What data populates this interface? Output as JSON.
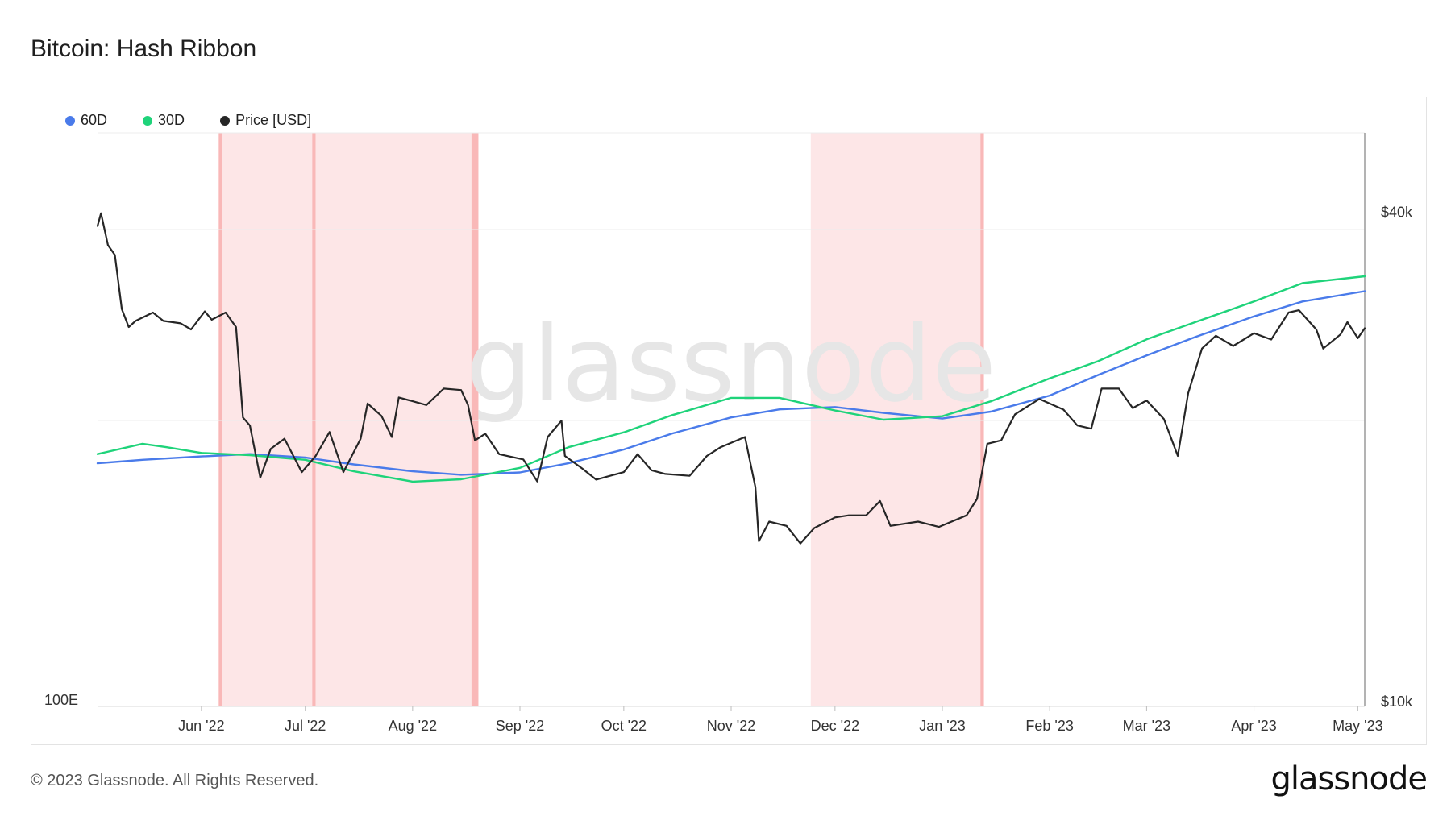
{
  "header": {
    "title": "Bitcoin: Hash Ribbon"
  },
  "footer": {
    "copyright": "© 2023 Glassnode. All Rights Reserved.",
    "brand": "glassnode"
  },
  "watermark": "glassnode",
  "chart_data": {
    "type": "line",
    "title": "Bitcoin: Hash Ribbon",
    "x_range": [
      "2022-05-02",
      "2023-05-03"
    ],
    "x_ticks": [
      {
        "date": "2022-06-01",
        "label": "Jun '22"
      },
      {
        "date": "2022-07-01",
        "label": "Jul '22"
      },
      {
        "date": "2022-08-01",
        "label": "Aug '22"
      },
      {
        "date": "2022-09-01",
        "label": "Sep '22"
      },
      {
        "date": "2022-10-01",
        "label": "Oct '22"
      },
      {
        "date": "2022-11-01",
        "label": "Nov '22"
      },
      {
        "date": "2022-12-01",
        "label": "Dec '22"
      },
      {
        "date": "2023-01-01",
        "label": "Jan '23"
      },
      {
        "date": "2023-02-01",
        "label": "Feb '23"
      },
      {
        "date": "2023-03-01",
        "label": "Mar '23"
      },
      {
        "date": "2023-04-01",
        "label": "Apr '23"
      },
      {
        "date": "2023-05-01",
        "label": "May '23"
      }
    ],
    "y_left": {
      "label_bottom": "100E"
    },
    "y_right": {
      "scale": "log",
      "range": [
        10000,
        50000
      ],
      "ticks": [
        {
          "value": 10000,
          "label": "$10k"
        },
        {
          "value": 40000,
          "label": "$40k"
        }
      ]
    },
    "legend_position": "top-left",
    "grid": true,
    "capitulation_periods": [
      [
        "2022-06-06",
        "2022-06-07"
      ],
      [
        "2022-06-07",
        "2022-07-03"
      ],
      [
        "2022-07-03",
        "2022-07-04"
      ],
      [
        "2022-07-04",
        "2022-08-18"
      ],
      [
        "2022-08-18",
        "2022-08-20"
      ],
      [
        "2022-11-24",
        "2023-01-12"
      ],
      [
        "2023-01-12",
        "2023-01-13"
      ]
    ],
    "series": [
      {
        "name": "60D",
        "color": "#4a7bea",
        "axis": "left",
        "points": [
          [
            "2022-05-02",
            31.2
          ],
          [
            "2022-05-15",
            31.5
          ],
          [
            "2022-06-01",
            31.8
          ],
          [
            "2022-06-15",
            32.0
          ],
          [
            "2022-07-01",
            31.7
          ],
          [
            "2022-07-15",
            31.1
          ],
          [
            "2022-08-01",
            30.5
          ],
          [
            "2022-08-15",
            30.2
          ],
          [
            "2022-09-01",
            30.4
          ],
          [
            "2022-09-15",
            31.2
          ],
          [
            "2022-10-01",
            32.4
          ],
          [
            "2022-10-15",
            33.8
          ],
          [
            "2022-11-01",
            35.2
          ],
          [
            "2022-11-15",
            35.9
          ],
          [
            "2022-12-01",
            36.1
          ],
          [
            "2022-12-15",
            35.6
          ],
          [
            "2023-01-01",
            35.1
          ],
          [
            "2023-01-15",
            35.7
          ],
          [
            "2023-02-01",
            37.1
          ],
          [
            "2023-02-15",
            38.9
          ],
          [
            "2023-03-01",
            40.6
          ],
          [
            "2023-03-15",
            42.2
          ],
          [
            "2023-04-01",
            44.0
          ],
          [
            "2023-04-15",
            45.3
          ],
          [
            "2023-05-03",
            46.2
          ]
        ]
      },
      {
        "name": "30D",
        "color": "#1fd37a",
        "axis": "left",
        "points": [
          [
            "2022-05-02",
            32.0
          ],
          [
            "2022-05-15",
            32.9
          ],
          [
            "2022-05-22",
            32.6
          ],
          [
            "2022-06-01",
            32.1
          ],
          [
            "2022-06-15",
            31.9
          ],
          [
            "2022-07-01",
            31.5
          ],
          [
            "2022-07-15",
            30.5
          ],
          [
            "2022-08-01",
            29.6
          ],
          [
            "2022-08-15",
            29.8
          ],
          [
            "2022-09-01",
            30.8
          ],
          [
            "2022-09-15",
            32.6
          ],
          [
            "2022-10-01",
            33.9
          ],
          [
            "2022-10-15",
            35.4
          ],
          [
            "2022-11-01",
            36.9
          ],
          [
            "2022-11-15",
            36.9
          ],
          [
            "2022-12-01",
            35.8
          ],
          [
            "2022-12-15",
            35.0
          ],
          [
            "2023-01-01",
            35.3
          ],
          [
            "2023-01-15",
            36.6
          ],
          [
            "2023-02-01",
            38.6
          ],
          [
            "2023-02-15",
            40.1
          ],
          [
            "2023-03-01",
            42.0
          ],
          [
            "2023-03-15",
            43.5
          ],
          [
            "2023-04-01",
            45.3
          ],
          [
            "2023-04-15",
            46.9
          ],
          [
            "2023-05-03",
            47.5
          ]
        ]
      },
      {
        "name": "Price [USD]",
        "color": "#262626",
        "axis": "right",
        "points": [
          [
            "2022-05-02",
            38500
          ],
          [
            "2022-05-03",
            39900
          ],
          [
            "2022-05-05",
            36500
          ],
          [
            "2022-05-07",
            35500
          ],
          [
            "2022-05-09",
            30500
          ],
          [
            "2022-05-11",
            29000
          ],
          [
            "2022-05-13",
            29500
          ],
          [
            "2022-05-18",
            30200
          ],
          [
            "2022-05-21",
            29500
          ],
          [
            "2022-05-26",
            29300
          ],
          [
            "2022-05-29",
            28800
          ],
          [
            "2022-06-02",
            30300
          ],
          [
            "2022-06-04",
            29600
          ],
          [
            "2022-06-08",
            30200
          ],
          [
            "2022-06-11",
            29000
          ],
          [
            "2022-06-13",
            22500
          ],
          [
            "2022-06-15",
            22000
          ],
          [
            "2022-06-18",
            19000
          ],
          [
            "2022-06-21",
            20600
          ],
          [
            "2022-06-25",
            21200
          ],
          [
            "2022-06-30",
            19300
          ],
          [
            "2022-07-04",
            20200
          ],
          [
            "2022-07-08",
            21600
          ],
          [
            "2022-07-12",
            19300
          ],
          [
            "2022-07-17",
            21200
          ],
          [
            "2022-07-19",
            23400
          ],
          [
            "2022-07-23",
            22600
          ],
          [
            "2022-07-26",
            21300
          ],
          [
            "2022-07-28",
            23800
          ],
          [
            "2022-08-05",
            23300
          ],
          [
            "2022-08-10",
            24400
          ],
          [
            "2022-08-15",
            24300
          ],
          [
            "2022-08-17",
            23300
          ],
          [
            "2022-08-19",
            21100
          ],
          [
            "2022-08-22",
            21500
          ],
          [
            "2022-08-26",
            20300
          ],
          [
            "2022-09-02",
            20000
          ],
          [
            "2022-09-06",
            18800
          ],
          [
            "2022-09-09",
            21300
          ],
          [
            "2022-09-13",
            22300
          ],
          [
            "2022-09-14",
            20200
          ],
          [
            "2022-09-19",
            19500
          ],
          [
            "2022-09-23",
            18900
          ],
          [
            "2022-10-01",
            19300
          ],
          [
            "2022-10-05",
            20300
          ],
          [
            "2022-10-09",
            19400
          ],
          [
            "2022-10-13",
            19200
          ],
          [
            "2022-10-20",
            19100
          ],
          [
            "2022-10-25",
            20200
          ],
          [
            "2022-10-29",
            20700
          ],
          [
            "2022-11-05",
            21300
          ],
          [
            "2022-11-08",
            18500
          ],
          [
            "2022-11-09",
            15900
          ],
          [
            "2022-11-12",
            16800
          ],
          [
            "2022-11-17",
            16600
          ],
          [
            "2022-11-21",
            15800
          ],
          [
            "2022-11-25",
            16500
          ],
          [
            "2022-12-01",
            17000
          ],
          [
            "2022-12-05",
            17100
          ],
          [
            "2022-12-10",
            17100
          ],
          [
            "2022-12-14",
            17800
          ],
          [
            "2022-12-17",
            16600
          ],
          [
            "2022-12-25",
            16800
          ],
          [
            "2022-12-31",
            16550
          ],
          [
            "2023-01-08",
            17100
          ],
          [
            "2023-01-11",
            17900
          ],
          [
            "2023-01-14",
            20900
          ],
          [
            "2023-01-18",
            21100
          ],
          [
            "2023-01-22",
            22700
          ],
          [
            "2023-01-29",
            23700
          ],
          [
            "2023-02-05",
            23000
          ],
          [
            "2023-02-09",
            22000
          ],
          [
            "2023-02-13",
            21800
          ],
          [
            "2023-02-16",
            24400
          ],
          [
            "2023-02-21",
            24400
          ],
          [
            "2023-02-25",
            23100
          ],
          [
            "2023-03-01",
            23600
          ],
          [
            "2023-03-06",
            22400
          ],
          [
            "2023-03-10",
            20200
          ],
          [
            "2023-03-13",
            24100
          ],
          [
            "2023-03-17",
            27300
          ],
          [
            "2023-03-21",
            28300
          ],
          [
            "2023-03-26",
            27500
          ],
          [
            "2023-04-01",
            28500
          ],
          [
            "2023-04-06",
            28000
          ],
          [
            "2023-04-11",
            30200
          ],
          [
            "2023-04-14",
            30400
          ],
          [
            "2023-04-19",
            28800
          ],
          [
            "2023-04-21",
            27300
          ],
          [
            "2023-04-26",
            28400
          ],
          [
            "2023-04-28",
            29400
          ],
          [
            "2023-05-01",
            28100
          ],
          [
            "2023-05-03",
            28900
          ]
        ]
      }
    ]
  }
}
